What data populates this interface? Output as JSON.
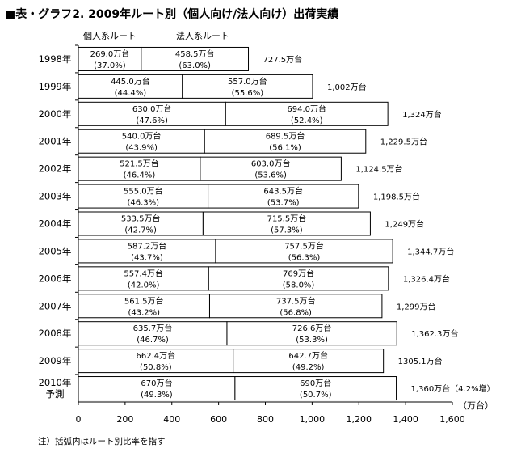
{
  "title": "■表・グラフ2. 2009年ルート別（個人向け/法人向け）出荷実績",
  "legend": {
    "personal": "個人系ルート",
    "corporate": "法人系ルート"
  },
  "unit_label": "（万台）",
  "footnote": "注）括弧内はルート別比率を指す",
  "chart_data": {
    "type": "bar",
    "orientation": "horizontal",
    "stacked": true,
    "title": "■表・グラフ2. 2009年ルート別（個人向け/法人向け）出荷実績",
    "xlim": [
      0,
      1600
    ],
    "x_ticks": [
      "0",
      "200",
      "400",
      "600",
      "800",
      "1,000",
      "1,200",
      "1,400",
      "1,600"
    ],
    "grid": false,
    "colors": {
      "bar_fill": "#ffffff",
      "bar_stroke": "#000000"
    },
    "categories": [
      "1998年",
      "1999年",
      "2000年",
      "2001年",
      "2002年",
      "2003年",
      "2004年",
      "2005年",
      "2006年",
      "2007年",
      "2008年",
      "2009年",
      "2010年\n予測"
    ],
    "series": [
      {
        "name": "個人系ルート",
        "values": [
          269.0,
          445.0,
          630.0,
          540.0,
          521.5,
          555.0,
          533.5,
          587.2,
          557.4,
          561.5,
          635.7,
          662.4,
          670
        ],
        "labels": [
          "269.0万台",
          "445.0万台",
          "630.0万台",
          "540.0万台",
          "521.5万台",
          "555.0万台",
          "533.5万台",
          "587.2万台",
          "557.4万台",
          "561.5万台",
          "635.7万台",
          "662.4万台",
          "670万台"
        ],
        "shares": [
          "(37.0%)",
          "(44.4%)",
          "(47.6%)",
          "(43.9%)",
          "(46.4%)",
          "(46.3%)",
          "(42.7%)",
          "(43.7%)",
          "(42.0%)",
          "(43.2%)",
          "(46.7%)",
          "(50.8%)",
          "(49.3%)"
        ]
      },
      {
        "name": "法人系ルート",
        "values": [
          458.5,
          557.0,
          694.0,
          689.5,
          603.0,
          643.5,
          715.5,
          757.5,
          769,
          737.5,
          726.6,
          642.7,
          690
        ],
        "labels": [
          "458.5万台",
          "557.0万台",
          "694.0万台",
          "689.5万台",
          "603.0万台",
          "643.5万台",
          "715.5万台",
          "757.5万台",
          "769万台",
          "737.5万台",
          "726.6万台",
          "642.7万台",
          "690万台"
        ],
        "shares": [
          "(63.0%)",
          "(55.6%)",
          "(52.4%)",
          "(56.1%)",
          "(53.6%)",
          "(53.7%)",
          "(57.3%)",
          "(56.3%)",
          "(58.0%)",
          "(56.8%)",
          "(53.3%)",
          "(49.2%)",
          "(50.7%)"
        ]
      }
    ],
    "totals": [
      "727.5万台",
      "1,002万台",
      "1,324万台",
      "1,229.5万台",
      "1,124.5万台",
      "1,198.5万台",
      "1,249万台",
      "1,344.7万台",
      "1,326.4万台",
      "1,299万台",
      "1,362.3万台",
      "1305.1万台",
      "1,360万台（4.2%増）"
    ]
  }
}
